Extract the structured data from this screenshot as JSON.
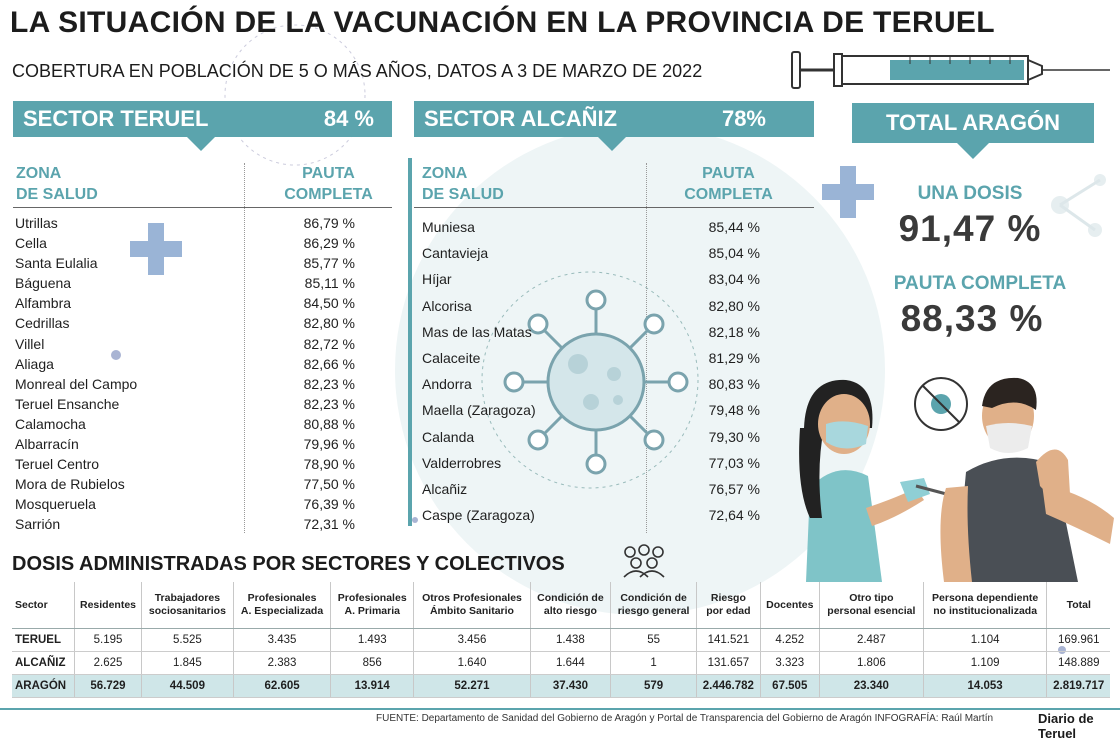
{
  "title": "LA SITUACIÓN DE LA VACUNACIÓN EN LA PROVINCIA DE TERUEL",
  "subtitle": "COBERTURA EN POBLACIÓN DE 5 O MÁS AÑOS, DATOS A 3 DE MARZO DE 2022",
  "colors": {
    "accent": "#5ba4ad",
    "accent_light": "#cfe6e8",
    "text": "#1f1f1f"
  },
  "icons": [
    "syringe-icon",
    "plus-icon",
    "virus-icon",
    "people-group-icon",
    "no-virus-icon"
  ],
  "sector_teruel": {
    "label": "SECTOR TERUEL",
    "pct": "84 %",
    "col_zona_1": "ZONA",
    "col_zona_2": "DE SALUD",
    "col_pauta_1": "PAUTA",
    "col_pauta_2": "COMPLETA",
    "rows": [
      {
        "zona": "Utrillas",
        "pauta": "86,79 %"
      },
      {
        "zona": "Cella",
        "pauta": "86,29 %"
      },
      {
        "zona": "Santa Eulalia",
        "pauta": "85,77 %"
      },
      {
        "zona": "Báguena",
        "pauta": "85,11 %"
      },
      {
        "zona": "Alfambra",
        "pauta": "84,50 %"
      },
      {
        "zona": "Cedrillas",
        "pauta": "82,80 %"
      },
      {
        "zona": "Villel",
        "pauta": "82,72 %"
      },
      {
        "zona": "Aliaga",
        "pauta": "82,66 %"
      },
      {
        "zona": "Monreal del Campo",
        "pauta": "82,23 %"
      },
      {
        "zona": "Teruel Ensanche",
        "pauta": "82,23 %"
      },
      {
        "zona": "Calamocha",
        "pauta": "80,88 %"
      },
      {
        "zona": "Albarracín",
        "pauta": "79,96 %"
      },
      {
        "zona": "Teruel Centro",
        "pauta": "78,90 %"
      },
      {
        "zona": "Mora de Rubielos",
        "pauta": "77,50 %"
      },
      {
        "zona": "Mosqueruela",
        "pauta": "76,39 %"
      },
      {
        "zona": "Sarrión",
        "pauta": "72,31 %"
      }
    ]
  },
  "sector_alcaniz": {
    "label": "SECTOR ALCAÑIZ",
    "pct": "78%",
    "col_zona_1": "ZONA",
    "col_zona_2": "DE SALUD",
    "col_pauta_1": "PAUTA",
    "col_pauta_2": "COMPLETA",
    "rows": [
      {
        "zona": "Muniesa",
        "pauta": "85,44 %"
      },
      {
        "zona": "Cantavieja",
        "pauta": "85,04 %"
      },
      {
        "zona": "Híjar",
        "pauta": "83,04 %"
      },
      {
        "zona": "Alcorisa",
        "pauta": "82,80 %"
      },
      {
        "zona": "Mas de las Matas",
        "pauta": "82,18 %"
      },
      {
        "zona": "Calaceite",
        "pauta": "81,29 %"
      },
      {
        "zona": "Andorra",
        "pauta": "80,83 %"
      },
      {
        "zona": "Maella (Zaragoza)",
        "pauta": "79,48 %"
      },
      {
        "zona": "Calanda",
        "pauta": "79,30 %"
      },
      {
        "zona": "Valderrobres",
        "pauta": "77,03 %"
      },
      {
        "zona": "Alcañiz",
        "pauta": "76,57 %"
      },
      {
        "zona": "Caspe (Zaragoza)",
        "pauta": "72,64 %"
      }
    ]
  },
  "total_aragon": {
    "label": "TOTAL ARAGÓN",
    "una_dosis_label": "UNA DOSIS",
    "una_dosis_value": "91,47 %",
    "pauta_label": "PAUTA COMPLETA",
    "pauta_value": "88,33 %"
  },
  "dosis_table": {
    "title": "DOSIS ADMINISTRADAS POR SECTORES Y COLECTIVOS",
    "headers": [
      [
        "Sector"
      ],
      [
        "Residentes"
      ],
      [
        "Trabajadores",
        "sociosanitarios"
      ],
      [
        "Profesionales",
        "A. Especializada"
      ],
      [
        "Profesionales",
        "A. Primaria"
      ],
      [
        "Otros Profesionales",
        "Ámbito Sanitario"
      ],
      [
        "Condición de",
        "alto riesgo"
      ],
      [
        "Condición de",
        "riesgo general"
      ],
      [
        "Riesgo",
        "por edad"
      ],
      [
        "Docentes"
      ],
      [
        "Otro tipo",
        "personal esencial"
      ],
      [
        "Persona dependiente",
        "no institucionalizada"
      ],
      [
        "Total"
      ]
    ],
    "rows": [
      [
        "TERUEL",
        "5.195",
        "5.525",
        "3.435",
        "1.493",
        "3.456",
        "1.438",
        "55",
        "141.521",
        "4.252",
        "2.487",
        "1.104",
        "169.961"
      ],
      [
        "ALCAÑIZ",
        "2.625",
        "1.845",
        "2.383",
        "856",
        "1.640",
        "1.644",
        "1",
        "131.657",
        "3.323",
        "1.806",
        "1.109",
        "148.889"
      ],
      [
        "ARAGÓN",
        "56.729",
        "44.509",
        "62.605",
        "13.914",
        "52.271",
        "37.430",
        "579",
        "2.446.782",
        "67.505",
        "23.340",
        "14.053",
        "2.819.717"
      ]
    ]
  },
  "footer": {
    "fuente_label": "FUENTE:",
    "fuente_text": "Departamento de Sanidad del Gobierno de Aragón y Portal de Transparencia del Gobierno de Aragón",
    "infografia_label": "INFOGRAFÍA:",
    "infografia_text": "Raúl Martín",
    "logo": "Diario de Teruel"
  }
}
